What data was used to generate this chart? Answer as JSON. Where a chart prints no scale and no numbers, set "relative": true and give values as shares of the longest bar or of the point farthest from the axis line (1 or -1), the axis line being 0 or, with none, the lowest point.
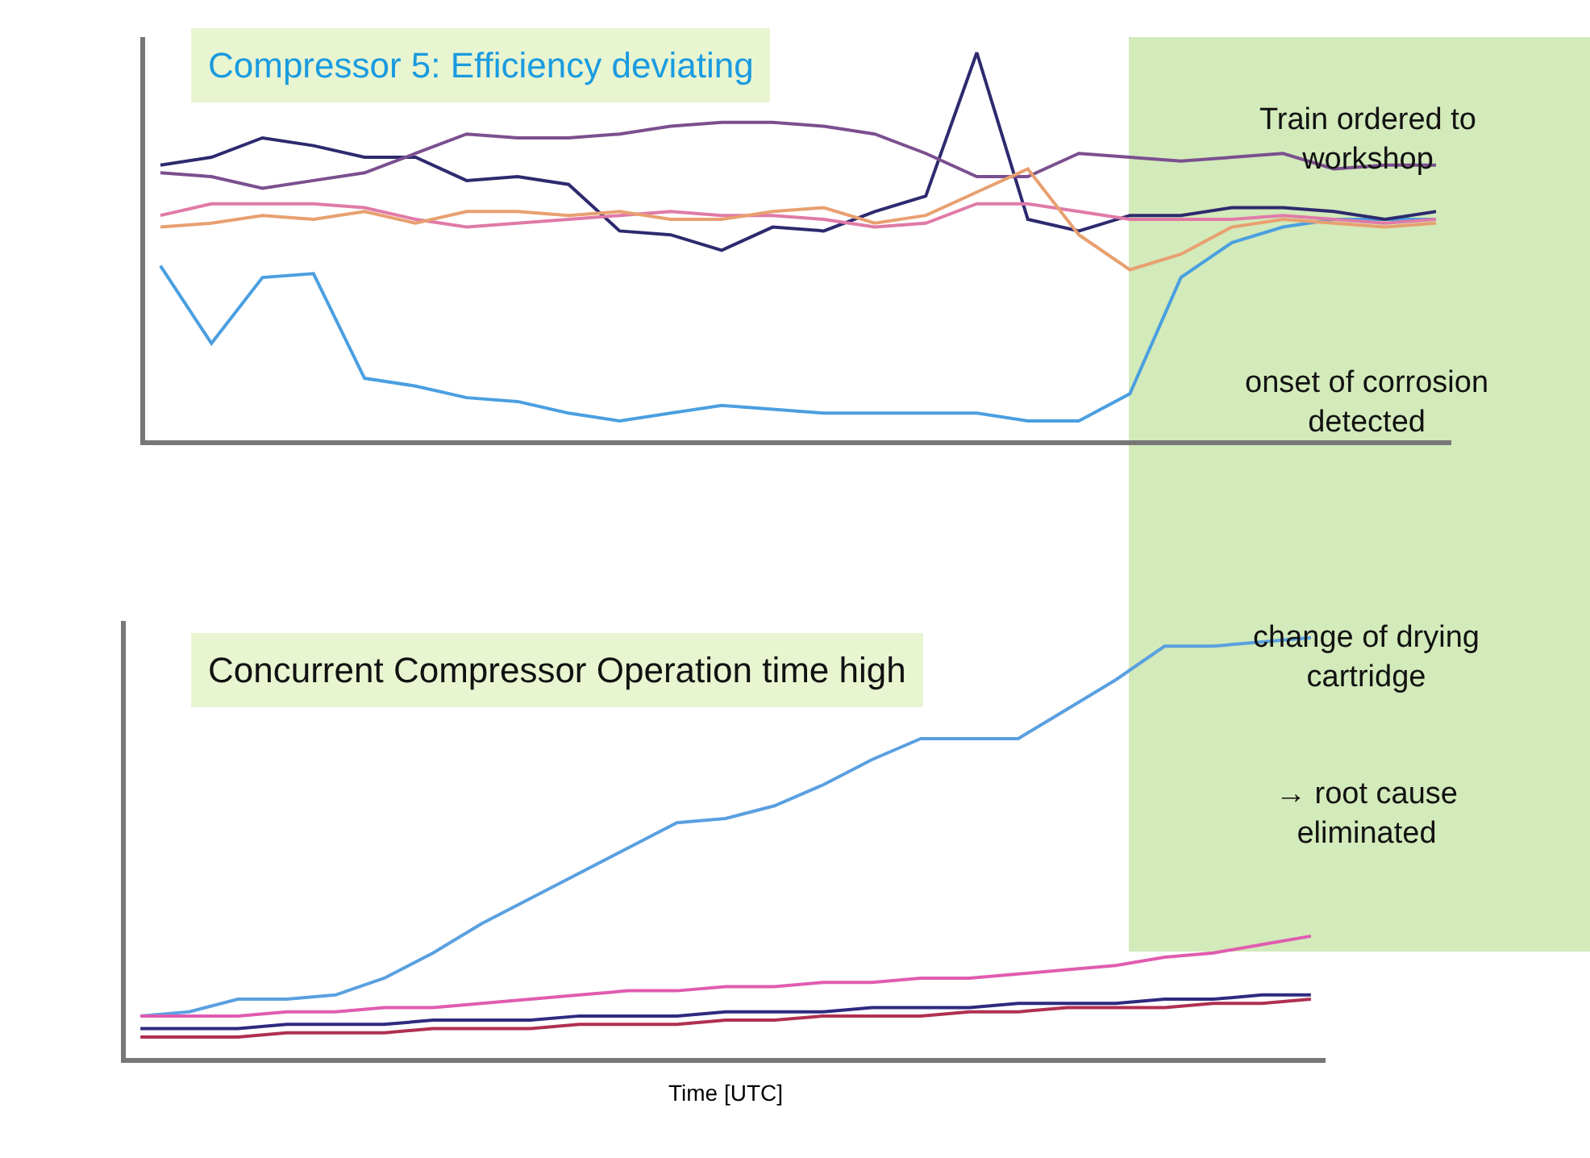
{
  "chart_data": [
    {
      "type": "line",
      "relative": true,
      "title": "Compressor 5: Efficiency deviating",
      "annotations": [
        "Train ordered to workshop",
        "onset of corrosion detected"
      ],
      "categories": [
        null,
        null,
        null,
        null,
        null,
        null,
        null,
        null,
        null,
        null,
        null,
        null,
        null,
        null,
        null,
        null,
        null,
        null,
        null,
        null,
        null,
        null,
        null,
        null,
        null,
        null
      ],
      "marker": "none",
      "line_style": "solid",
      "tick_labels": false,
      "series": [
        {
          "color": "#4a9fe0",
          "values": [
            0.45,
            0.25,
            0.42,
            0.43,
            0.16,
            0.14,
            0.11,
            0.1,
            0.07,
            0.05,
            0.07,
            0.09,
            0.08,
            0.07,
            0.07,
            0.07,
            0.07,
            0.05,
            0.05,
            0.12,
            0.42,
            0.51,
            0.55,
            0.57,
            0.57,
            0.57
          ]
        },
        {
          "color": "#2d2a6e",
          "values": [
            0.71,
            0.73,
            0.78,
            0.76,
            0.73,
            0.73,
            0.67,
            0.68,
            0.66,
            0.54,
            0.53,
            0.49,
            0.55,
            0.54,
            0.59,
            0.63,
            1,
            0.57,
            0.54,
            0.58,
            0.58,
            0.6,
            0.6,
            0.59,
            0.57,
            0.59
          ]
        },
        {
          "color": "#7b4f8f",
          "values": [
            0.69,
            0.68,
            0.65,
            0.67,
            0.69,
            0.74,
            0.79,
            0.78,
            0.78,
            0.79,
            0.81,
            0.82,
            0.82,
            0.81,
            0.79,
            0.74,
            0.68,
            0.68,
            0.74,
            0.73,
            0.72,
            0.73,
            0.74,
            0.7,
            0.71,
            0.71
          ]
        },
        {
          "color": "#e07aa8",
          "values": [
            0.58,
            0.61,
            0.61,
            0.61,
            0.6,
            0.57,
            0.55,
            0.56,
            0.57,
            0.58,
            0.59,
            0.58,
            0.58,
            0.57,
            0.55,
            0.56,
            0.61,
            0.61,
            0.59,
            0.57,
            0.57,
            0.57,
            0.58,
            0.57,
            0.56,
            0.57
          ]
        },
        {
          "color": "#e8a070",
          "values": [
            0.55,
            0.56,
            0.58,
            0.57,
            0.59,
            0.56,
            0.59,
            0.59,
            0.58,
            0.59,
            0.57,
            0.57,
            0.59,
            0.6,
            0.56,
            0.58,
            0.64,
            0.7,
            0.53,
            0.44,
            0.48,
            0.55,
            0.57,
            0.56,
            0.55,
            0.56
          ]
        }
      ]
    },
    {
      "type": "line",
      "relative": true,
      "title": "Concurrent Compressor Operation time high",
      "xlabel": "Time [UTC]",
      "annotations": [
        "change of drying cartridge",
        "→ root cause eliminated"
      ],
      "categories": [
        null,
        null,
        null,
        null,
        null,
        null,
        null,
        null,
        null,
        null,
        null,
        null,
        null,
        null,
        null,
        null,
        null,
        null,
        null,
        null,
        null,
        null,
        null,
        null,
        null
      ],
      "marker": "none",
      "line_style": "solid",
      "tick_labels": false,
      "series": [
        {
          "color": "#5aa0e0",
          "values": [
            0.1,
            0.11,
            0.14,
            0.14,
            0.15,
            0.19,
            0.25,
            0.32,
            0.38,
            0.44,
            0.5,
            0.56,
            0.57,
            0.6,
            0.65,
            0.71,
            0.76,
            0.76,
            0.76,
            0.83,
            0.9,
            0.98,
            0.98,
            0.99,
            1
          ]
        },
        {
          "color": "#e05cb0",
          "values": [
            0.1,
            0.1,
            0.1,
            0.11,
            0.11,
            0.12,
            0.12,
            0.13,
            0.14,
            0.15,
            0.16,
            0.16,
            0.17,
            0.17,
            0.18,
            0.18,
            0.19,
            0.19,
            0.2,
            0.21,
            0.22,
            0.24,
            0.25,
            0.27,
            0.29
          ]
        },
        {
          "color": "#2e2a80",
          "values": [
            0.07,
            0.07,
            0.07,
            0.08,
            0.08,
            0.08,
            0.09,
            0.09,
            0.09,
            0.1,
            0.1,
            0.1,
            0.11,
            0.11,
            0.11,
            0.12,
            0.12,
            0.12,
            0.13,
            0.13,
            0.13,
            0.14,
            0.14,
            0.15,
            0.15
          ]
        },
        {
          "color": "#b03050",
          "values": [
            0.05,
            0.05,
            0.05,
            0.06,
            0.06,
            0.06,
            0.07,
            0.07,
            0.07,
            0.08,
            0.08,
            0.08,
            0.09,
            0.09,
            0.1,
            0.1,
            0.1,
            0.11,
            0.11,
            0.12,
            0.12,
            0.12,
            0.13,
            0.13,
            0.14
          ]
        }
      ]
    }
  ]
}
